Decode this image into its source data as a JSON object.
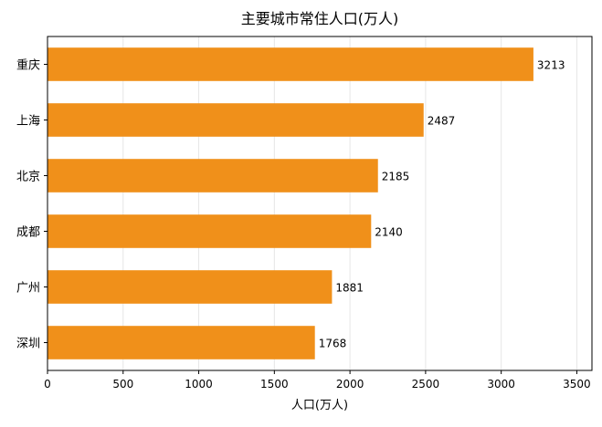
{
  "chart_data": {
    "type": "bar",
    "orientation": "horizontal",
    "title": "主要城市常住人口(万人)",
    "xlabel": "人口(万人)",
    "ylabel": "",
    "categories": [
      "重庆",
      "上海",
      "北京",
      "成都",
      "广州",
      "深圳"
    ],
    "values": [
      3213,
      2487,
      2185,
      2140,
      1881,
      1768
    ],
    "xlim": [
      0,
      3600
    ],
    "xticks": [
      0,
      500,
      1000,
      1500,
      2000,
      2500,
      3000,
      3500
    ],
    "grid": "vertical",
    "legend": "none",
    "bar_color": "#f0901a"
  }
}
